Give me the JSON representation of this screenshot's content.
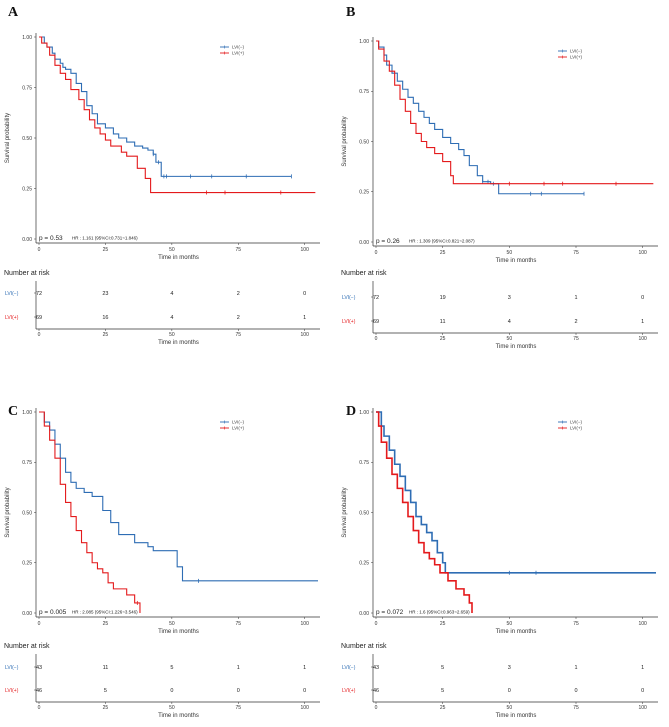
{
  "colors": {
    "lvi_neg": "#2e6db4",
    "lvi_pos": "#e41a1c"
  },
  "chart_data": [
    {
      "panel": "A",
      "type": "line",
      "subtype": "kaplan-meier",
      "xlabel": "Time in months",
      "ylabel": "Survival probability",
      "xlim": [
        0,
        105
      ],
      "ylim": [
        0,
        1
      ],
      "xticks": [
        "0",
        "25",
        "50",
        "75",
        "100"
      ],
      "yticks": [
        "0.00",
        "0.25",
        "0.50",
        "0.75",
        "1.00"
      ],
      "legend": [
        "LVI(−)",
        "LVI(+)"
      ],
      "p_value": "p = 0.53",
      "hr_text": "HR : 1.161  (95%CI:0.731~1.846)",
      "series": [
        {
          "name": "LVI(−)",
          "x": [
            0,
            2,
            3,
            5,
            6,
            8,
            9,
            10,
            12,
            14,
            16,
            18,
            20,
            22,
            25,
            28,
            30,
            33,
            36,
            39,
            41,
            43,
            44,
            46,
            95
          ],
          "y": [
            1.0,
            0.97,
            0.95,
            0.92,
            0.89,
            0.87,
            0.85,
            0.84,
            0.82,
            0.77,
            0.73,
            0.66,
            0.62,
            0.57,
            0.55,
            0.52,
            0.5,
            0.48,
            0.46,
            0.45,
            0.44,
            0.42,
            0.38,
            0.31,
            0.31
          ],
          "censor_x": [
            43,
            45,
            47,
            48,
            57,
            65,
            78,
            95
          ]
        },
        {
          "name": "LVI(+)",
          "x": [
            0,
            1,
            3,
            4,
            6,
            8,
            10,
            12,
            15,
            17,
            19,
            21,
            23,
            25,
            27,
            31,
            33,
            37,
            40,
            42,
            104
          ],
          "y": [
            1.0,
            0.97,
            0.95,
            0.91,
            0.86,
            0.82,
            0.79,
            0.74,
            0.69,
            0.64,
            0.59,
            0.55,
            0.52,
            0.49,
            0.46,
            0.43,
            0.41,
            0.35,
            0.3,
            0.23,
            0.23
          ],
          "censor_x": [
            63,
            70,
            91
          ]
        }
      ],
      "risk_title": "Number at risk",
      "risk_times": [
        "0",
        "25",
        "50",
        "75",
        "100"
      ],
      "risk_rows": [
        {
          "label": "LVI(−)",
          "values": [
            "72",
            "23",
            "4",
            "2",
            "0"
          ]
        },
        {
          "label": "LVI(+)",
          "values": [
            "69",
            "16",
            "4",
            "2",
            "1"
          ]
        }
      ]
    },
    {
      "panel": "B",
      "type": "line",
      "subtype": "kaplan-meier",
      "xlabel": "Time in months",
      "ylabel": "Survival probability",
      "xlim": [
        0,
        105
      ],
      "ylim": [
        0,
        1
      ],
      "xticks": [
        "0",
        "25",
        "50",
        "75",
        "100"
      ],
      "yticks": [
        "0.00",
        "0.25",
        "0.50",
        "0.75",
        "1.00"
      ],
      "legend": [
        "LVI(−)",
        "LVI(+)"
      ],
      "p_value": "p = 0.26",
      "hr_text": "HR : 1.309  (95%CI:0.821~2.087)",
      "series": [
        {
          "name": "LVI(−)",
          "x": [
            0,
            1,
            3,
            4,
            6,
            8,
            10,
            12,
            14,
            16,
            18,
            20,
            22,
            25,
            28,
            31,
            33,
            35,
            38,
            40,
            43,
            45,
            46,
            78
          ],
          "y": [
            1.0,
            0.97,
            0.93,
            0.88,
            0.84,
            0.8,
            0.76,
            0.72,
            0.69,
            0.65,
            0.62,
            0.59,
            0.56,
            0.52,
            0.49,
            0.46,
            0.43,
            0.38,
            0.33,
            0.3,
            0.29,
            0.29,
            0.24,
            0.24
          ],
          "censor_x": [
            40,
            42,
            44,
            58,
            62,
            78
          ]
        },
        {
          "name": "LVI(+)",
          "x": [
            0,
            1,
            3,
            5,
            7,
            9,
            11,
            13,
            15,
            17,
            19,
            22,
            25,
            28,
            29,
            104
          ],
          "y": [
            1.0,
            0.96,
            0.9,
            0.85,
            0.78,
            0.71,
            0.65,
            0.59,
            0.54,
            0.5,
            0.47,
            0.44,
            0.4,
            0.33,
            0.29,
            0.29
          ],
          "censor_x": [
            50,
            63,
            70,
            90
          ]
        }
      ],
      "risk_title": "Number at risk",
      "risk_times": [
        "0",
        "25",
        "50",
        "75",
        "100"
      ],
      "risk_rows": [
        {
          "label": "LVI(−)",
          "values": [
            "72",
            "19",
            "3",
            "1",
            "0"
          ]
        },
        {
          "label": "LVI(+)",
          "values": [
            "69",
            "11",
            "4",
            "2",
            "1"
          ]
        }
      ]
    },
    {
      "panel": "C",
      "type": "line",
      "subtype": "kaplan-meier",
      "xlabel": "Time in months",
      "ylabel": "Survival probability",
      "xlim": [
        0,
        105
      ],
      "ylim": [
        0,
        1
      ],
      "xticks": [
        "0",
        "25",
        "50",
        "75",
        "100"
      ],
      "yticks": [
        "0.00",
        "0.25",
        "0.50",
        "0.75",
        "1.00"
      ],
      "legend": [
        "LVI(−)",
        "LVI(+)"
      ],
      "p_value": "p = 0.005",
      "hr_text": "HR : 2.085  (95%CI:1.226~3.546)",
      "series": [
        {
          "name": "LVI(−)",
          "x": [
            0,
            2,
            4,
            6,
            8,
            10,
            12,
            14,
            17,
            20,
            24,
            27,
            30,
            36,
            41,
            43,
            52,
            54,
            105
          ],
          "y": [
            1.0,
            0.95,
            0.91,
            0.84,
            0.77,
            0.7,
            0.65,
            0.62,
            0.6,
            0.58,
            0.51,
            0.45,
            0.39,
            0.35,
            0.33,
            0.31,
            0.23,
            0.16,
            0.16
          ],
          "censor_x": [
            60
          ]
        },
        {
          "name": "LVI(+)",
          "x": [
            0,
            2,
            4,
            6,
            8,
            10,
            12,
            14,
            16,
            18,
            20,
            22,
            24,
            26,
            28,
            33,
            36,
            38
          ],
          "y": [
            1.0,
            0.93,
            0.86,
            0.77,
            0.64,
            0.55,
            0.48,
            0.41,
            0.35,
            0.3,
            0.25,
            0.22,
            0.2,
            0.15,
            0.12,
            0.09,
            0.05,
            0.0
          ],
          "censor_x": [
            37
          ]
        }
      ],
      "risk_title": "Number at risk",
      "risk_times": [
        "0",
        "25",
        "50",
        "75",
        "100"
      ],
      "risk_rows": [
        {
          "label": "LVI(−)",
          "values": [
            "43",
            "11",
            "5",
            "1",
            "1"
          ]
        },
        {
          "label": "LVI(+)",
          "values": [
            "46",
            "5",
            "0",
            "0",
            "0"
          ]
        }
      ]
    },
    {
      "panel": "D",
      "type": "line",
      "subtype": "kaplan-meier",
      "xlabel": "Time in months",
      "ylabel": "Survival probability",
      "xlim": [
        0,
        105
      ],
      "ylim": [
        0,
        1
      ],
      "xticks": [
        "0",
        "25",
        "50",
        "75",
        "100"
      ],
      "yticks": [
        "0.00",
        "0.25",
        "0.50",
        "0.75",
        "1.00"
      ],
      "legend": [
        "LVI(−)",
        "LVI(+)"
      ],
      "p_value": "p = 0.072",
      "hr_text": "HR : 1.6  (95%CI:0.963~2.659)",
      "series": [
        {
          "name": "LVI(−)",
          "x": [
            0,
            2,
            3,
            5,
            7,
            9,
            11,
            13,
            15,
            17,
            19,
            21,
            23,
            25,
            26,
            105
          ],
          "y": [
            1.0,
            0.93,
            0.88,
            0.81,
            0.74,
            0.68,
            0.61,
            0.55,
            0.48,
            0.44,
            0.4,
            0.36,
            0.3,
            0.25,
            0.2,
            0.2
          ],
          "censor_x": [
            50,
            60
          ]
        },
        {
          "name": "LVI(+)",
          "x": [
            0,
            1,
            2,
            4,
            6,
            8,
            10,
            12,
            14,
            16,
            18,
            20,
            22,
            24,
            27,
            30,
            33,
            35,
            36
          ],
          "y": [
            1.0,
            0.93,
            0.85,
            0.77,
            0.69,
            0.62,
            0.55,
            0.48,
            0.41,
            0.35,
            0.3,
            0.27,
            0.24,
            0.2,
            0.16,
            0.12,
            0.09,
            0.05,
            0.0
          ],
          "censor_x": []
        }
      ],
      "risk_title": "Number at risk",
      "risk_times": [
        "0",
        "25",
        "50",
        "75",
        "100"
      ],
      "risk_rows": [
        {
          "label": "LVI(−)",
          "values": [
            "43",
            "5",
            "3",
            "1",
            "1"
          ]
        },
        {
          "label": "LVI(+)",
          "values": [
            "46",
            "5",
            "0",
            "0",
            "0"
          ]
        }
      ]
    }
  ]
}
